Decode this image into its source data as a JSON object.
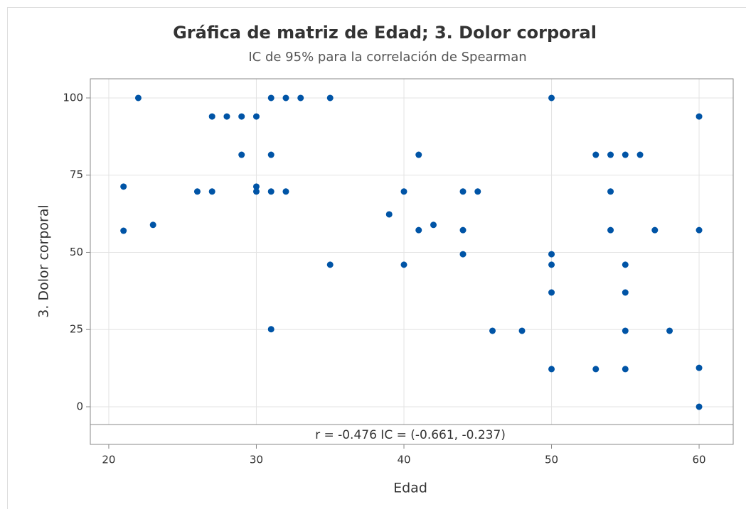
{
  "chart_data": {
    "type": "scatter",
    "title": "Gráfica de matriz de Edad; 3. Dolor corporal",
    "subtitle": "IC de 95% para la correlación de Spearman",
    "x_label": "Edad",
    "y_label": "3. Dolor corporal",
    "annotation": "r = -0.476  IC = (-0.661, -0.237)",
    "color": "#0054a6",
    "grid": true,
    "xlim": [
      18.75,
      62.31
    ],
    "ylim": [
      -5.75,
      106.2
    ],
    "xticks": [
      20,
      30,
      40,
      50,
      60
    ],
    "yticks": [
      0,
      25,
      50,
      75,
      100
    ],
    "x": [
      22,
      21,
      21,
      23,
      26,
      27,
      27,
      28,
      29,
      29,
      30,
      30,
      30,
      31,
      31,
      31,
      31,
      32,
      32,
      33,
      35,
      35,
      39,
      40,
      40,
      41,
      41,
      42,
      44,
      44,
      44,
      45,
      46,
      48,
      50,
      50,
      50,
      50,
      50,
      53,
      53,
      54,
      54,
      54,
      55,
      55,
      55,
      55,
      55,
      56,
      57,
      58,
      60,
      60,
      60,
      60
    ],
    "values": [
      100,
      71.3,
      57.0,
      58.9,
      69.7,
      94.0,
      69.7,
      94.0,
      94.0,
      81.6,
      94.0,
      71.3,
      69.7,
      100,
      81.6,
      69.7,
      25.1,
      100,
      69.7,
      100,
      100,
      46.0,
      62.3,
      69.7,
      46.0,
      81.6,
      57.2,
      58.9,
      69.7,
      57.2,
      49.4,
      69.7,
      24.6,
      24.6,
      100,
      49.4,
      46.0,
      37.0,
      12.2,
      81.6,
      12.2,
      81.6,
      69.7,
      57.2,
      81.6,
      46.0,
      37.0,
      24.6,
      12.2,
      81.6,
      57.2,
      24.6,
      94.0,
      57.2,
      12.6,
      0
    ]
  }
}
